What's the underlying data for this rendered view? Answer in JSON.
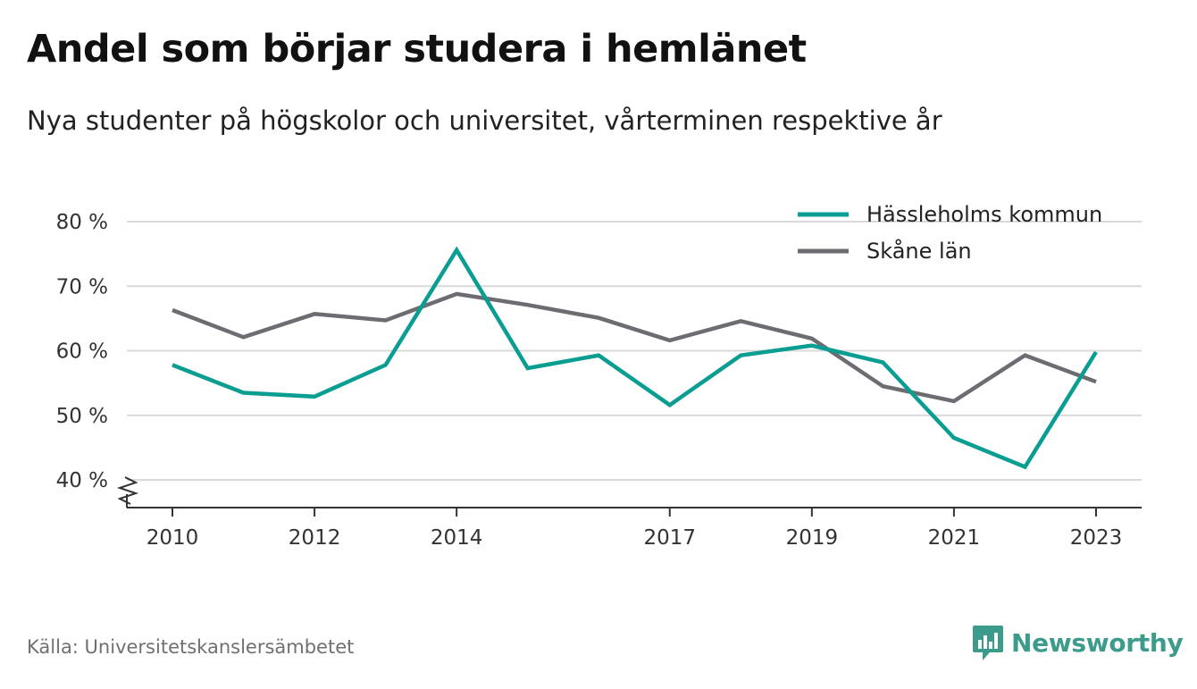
{
  "title": "Andel som börjar studera i hemlänet",
  "subtitle": "Nya studenter på högskolor och universitet, vårterminen respektive år",
  "source": "Källa: Universitetskanslersämbetet",
  "brand": "Newsworthy",
  "colors": {
    "teal": "#0a9d91",
    "gray": "#6e6c73",
    "brand": "#3c9b8a"
  },
  "chart_data": {
    "type": "line",
    "title": "Andel som börjar studera i hemlänet",
    "subtitle": "Nya studenter på högskolor och universitet, vårterminen respektive år",
    "x": [
      2010,
      2011,
      2012,
      2013,
      2014,
      2015,
      2016,
      2017,
      2018,
      2019,
      2020,
      2021,
      2022,
      2023
    ],
    "x_tick_labels": [
      "2010",
      "2012",
      "2014",
      "2017",
      "2019",
      "2021",
      "2023"
    ],
    "y_tick_values": [
      40,
      50,
      60,
      70,
      80
    ],
    "y_tick_labels": [
      "40 %",
      "50 %",
      "60 %",
      "70 %",
      "80 %"
    ],
    "ylim": [
      35.5,
      80
    ],
    "y_axis_break": true,
    "grid": true,
    "legend_position": "top-right",
    "series": [
      {
        "name": "Hässleholms kommun",
        "color": "#0a9d91",
        "values": [
          57.8,
          53.5,
          52.9,
          57.8,
          75.6,
          57.3,
          59.3,
          51.6,
          59.3,
          60.8,
          58.2,
          46.5,
          42.0,
          59.8
        ]
      },
      {
        "name": "Skåne län",
        "color": "#6e6c73",
        "values": [
          66.3,
          62.1,
          65.7,
          64.7,
          68.8,
          67.1,
          65.1,
          61.6,
          64.6,
          61.9,
          54.5,
          52.2,
          59.3,
          55.2
        ]
      }
    ]
  }
}
